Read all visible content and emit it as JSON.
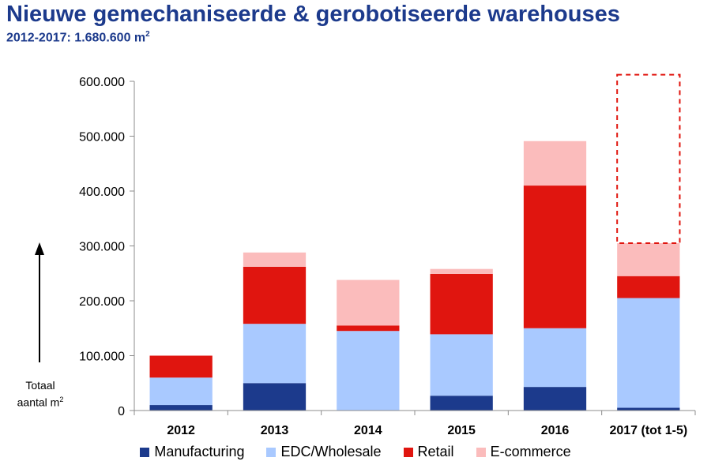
{
  "header": {
    "title": "Nieuwe gemechaniseerde & gerobotiseerde warehouses",
    "subtitle_main": "2012-2017: 1.680.600 m",
    "subtitle_sup": "2"
  },
  "y_axis_title": {
    "line1": "Totaal",
    "line2": "aantal m",
    "sup": "2"
  },
  "colors": {
    "Manufacturing": "#1c3a8c",
    "EDC/Wholesale": "#a9c9ff",
    "Retail": "#e0150f",
    "E-commerce": "#fbbcbc",
    "title": "#1c3a8c",
    "projection_outline": "#e0150f"
  },
  "chart_data": {
    "type": "bar",
    "stacked": true,
    "categories": [
      "2012",
      "2013",
      "2014",
      "2015",
      "2016",
      "2017 (tot 1-5)"
    ],
    "series": [
      {
        "name": "Manufacturing",
        "values": [
          10000,
          50000,
          0,
          27000,
          43000,
          5000
        ]
      },
      {
        "name": "EDC/Wholesale",
        "values": [
          50000,
          108000,
          145000,
          112000,
          107000,
          200000
        ]
      },
      {
        "name": "Retail",
        "values": [
          40000,
          104000,
          10000,
          110000,
          260000,
          40000
        ]
      },
      {
        "name": "E-commerce",
        "values": [
          0,
          26000,
          83000,
          9000,
          81000,
          60000
        ]
      }
    ],
    "projection": {
      "category": "2017 (tot 1-5)",
      "from": 305000,
      "to": 612000
    },
    "ylim": [
      0,
      600000
    ],
    "yticks": [
      0,
      100000,
      200000,
      300000,
      400000,
      500000,
      600000
    ],
    "ytick_labels": [
      "0",
      "100.000",
      "200.000",
      "300.000",
      "400.000",
      "500.000",
      "600.000"
    ],
    "legend": [
      "Manufacturing",
      "EDC/Wholesale",
      "Retail",
      "E-commerce"
    ],
    "legend_position": "bottom",
    "grid": false
  }
}
